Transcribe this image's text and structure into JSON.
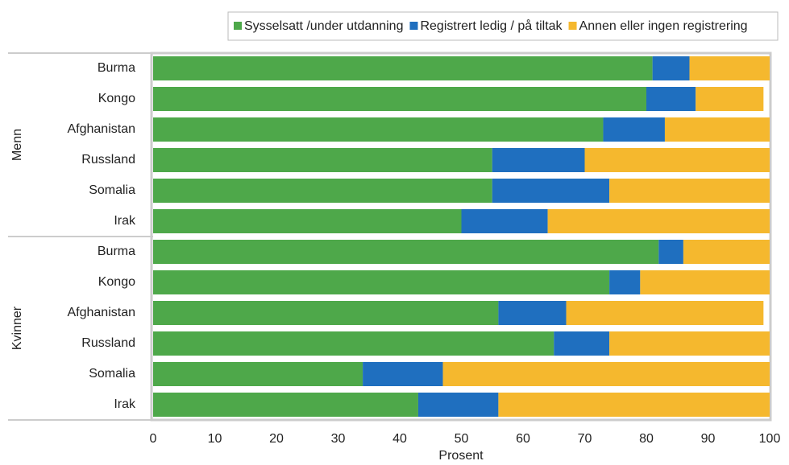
{
  "chart_data": {
    "type": "stacked-barh",
    "xlabel": "Prosent",
    "groups": [
      "Menn",
      "Kvinner"
    ],
    "categories": [
      "Burma",
      "Kongo",
      "Afghanistan",
      "Russland",
      "Somalia",
      "Irak",
      "Burma",
      "Kongo",
      "Afghanistan",
      "Russland",
      "Somalia",
      "Irak"
    ],
    "series": [
      {
        "name": "Sysselsatt /under utdanning",
        "color": "#4ea84a",
        "values": [
          81,
          80,
          73,
          55,
          55,
          50,
          82,
          74,
          56,
          65,
          34,
          43
        ]
      },
      {
        "name": "Registrert ledig / på tiltak",
        "color": "#1f6fbf",
        "values": [
          6,
          8,
          10,
          15,
          19,
          14,
          4,
          5,
          11,
          9,
          13,
          13
        ]
      },
      {
        "name": "Annen eller ingen registrering",
        "color": "#f5b82e",
        "values": [
          13,
          11,
          17,
          30,
          26,
          36,
          14,
          21,
          32,
          26,
          53,
          44
        ]
      }
    ],
    "xlim": [
      0,
      100
    ],
    "xticks": [
      0,
      10,
      20,
      30,
      40,
      50,
      60,
      70,
      80,
      90,
      100
    ],
    "legend": "top"
  }
}
